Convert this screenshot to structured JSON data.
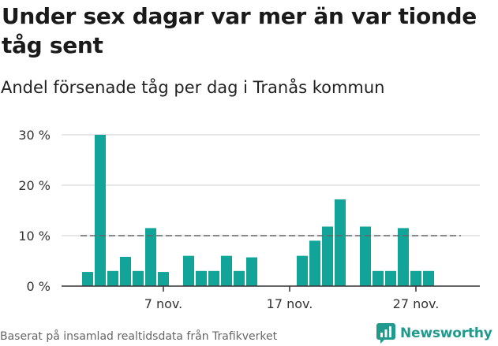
{
  "title": "Under sex dagar var mer än var tionde tåg sent",
  "subtitle": "Andel försenade tåg per dag i Tranås kommun",
  "footer": "Baserat på insamlad realtidsdata från Trafikverket",
  "logo_text": "Newsworthy",
  "colors": {
    "bar": "#12a399",
    "grid": "#dddddd",
    "reference": "#666666",
    "axis": "#333333",
    "logo": "#1f9a8c"
  },
  "chart_data": {
    "type": "bar",
    "x": [
      "2019-11-01",
      "2019-11-02",
      "2019-11-03",
      "2019-11-04",
      "2019-11-05",
      "2019-11-06",
      "2019-11-07",
      "2019-11-08",
      "2019-11-09",
      "2019-11-10",
      "2019-11-11",
      "2019-11-12",
      "2019-11-13",
      "2019-11-14",
      "2019-11-15",
      "2019-11-16",
      "2019-11-17",
      "2019-11-18",
      "2019-11-19",
      "2019-11-20",
      "2019-11-21",
      "2019-11-22",
      "2019-11-23",
      "2019-11-24",
      "2019-11-25",
      "2019-11-26",
      "2019-11-27",
      "2019-11-28",
      "2019-11-29",
      "2019-11-30"
    ],
    "values": [
      2.8,
      30,
      3,
      5.8,
      3,
      11.5,
      2.8,
      null,
      6,
      3,
      3,
      6,
      3,
      5.7,
      null,
      null,
      null,
      6,
      9,
      11.8,
      17.2,
      null,
      11.8,
      3,
      3,
      11.5,
      3,
      3,
      null,
      null
    ],
    "reference_line": 10,
    "y_ticks": [
      "0 %",
      "10 %",
      "20 %",
      "30 %"
    ],
    "y_tick_values": [
      0,
      10,
      20,
      30
    ],
    "ylim": [
      0,
      30
    ],
    "x_tick_labels": [
      "7 nov.",
      "17 nov.",
      "27 nov."
    ],
    "x_tick_dates": [
      "2019-11-07",
      "2019-11-17",
      "2019-11-27"
    ],
    "grid": true,
    "legend": false
  }
}
